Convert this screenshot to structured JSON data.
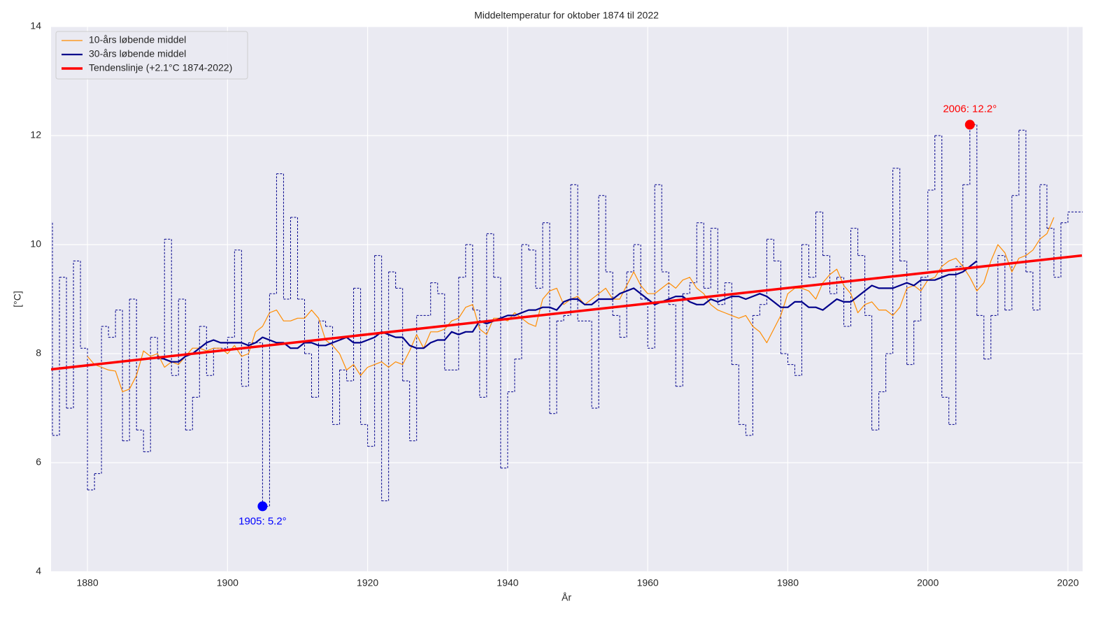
{
  "chart_data": {
    "type": "line",
    "title": "Middeltemperatur for oktober 1874 til 2022",
    "xlabel": "År",
    "ylabel": "[°C]",
    "xlim": [
      1874.8,
      2022.1
    ],
    "ylim": [
      4,
      14
    ],
    "xticks": [
      1880,
      1900,
      1920,
      1940,
      1960,
      1980,
      2000,
      2020
    ],
    "yticks": [
      4,
      6,
      8,
      10,
      12,
      14
    ],
    "grid": true,
    "background": "#eaeaf2",
    "legend": "upper left",
    "drawstyle": "steps-post",
    "color": "#00008b",
    "linestyle": "dashed",
    "x": [
      1874,
      1875,
      1876,
      1877,
      1878,
      1879,
      1880,
      1881,
      1882,
      1883,
      1884,
      1885,
      1886,
      1887,
      1888,
      1889,
      1890,
      1891,
      1892,
      1893,
      1894,
      1895,
      1896,
      1897,
      1898,
      1899,
      1900,
      1901,
      1902,
      1903,
      1904,
      1905,
      1906,
      1907,
      1908,
      1909,
      1910,
      1911,
      1912,
      1913,
      1914,
      1915,
      1916,
      1917,
      1918,
      1919,
      1920,
      1921,
      1922,
      1923,
      1924,
      1925,
      1926,
      1927,
      1928,
      1929,
      1930,
      1931,
      1932,
      1933,
      1934,
      1935,
      1936,
      1937,
      1938,
      1939,
      1940,
      1941,
      1942,
      1943,
      1944,
      1945,
      1946,
      1947,
      1948,
      1949,
      1950,
      1951,
      1952,
      1953,
      1954,
      1955,
      1956,
      1957,
      1958,
      1959,
      1960,
      1961,
      1962,
      1963,
      1964,
      1965,
      1966,
      1967,
      1968,
      1969,
      1970,
      1971,
      1972,
      1973,
      1974,
      1975,
      1976,
      1977,
      1978,
      1979,
      1980,
      1981,
      1982,
      1983,
      1984,
      1985,
      1986,
      1987,
      1988,
      1989,
      1990,
      1991,
      1992,
      1993,
      1994,
      1995,
      1996,
      1997,
      1998,
      1999,
      2000,
      2001,
      2002,
      2003,
      2004,
      2005,
      2006,
      2007,
      2008,
      2009,
      2010,
      2011,
      2012,
      2013,
      2014,
      2015,
      2016,
      2017,
      2018,
      2019,
      2020,
      2021
    ],
    "values": [
      10.4,
      6.5,
      9.4,
      7.0,
      9.7,
      8.1,
      5.5,
      5.8,
      8.5,
      8.3,
      8.8,
      6.4,
      9.0,
      6.6,
      6.2,
      8.3,
      7.9,
      10.1,
      7.6,
      9.0,
      6.6,
      7.2,
      8.5,
      7.6,
      8.1,
      8.1,
      8.3,
      9.9,
      7.4,
      8.2,
      8.2,
      5.2,
      9.1,
      11.3,
      9.0,
      10.5,
      9.0,
      8.0,
      7.2,
      8.6,
      8.5,
      6.7,
      7.7,
      7.5,
      9.2,
      6.7,
      6.3,
      9.8,
      5.3,
      9.5,
      9.2,
      7.5,
      6.4,
      8.7,
      8.7,
      9.3,
      9.1,
      7.7,
      7.7,
      9.4,
      10.0,
      8.8,
      7.2,
      10.2,
      9.4,
      5.9,
      7.3,
      7.9,
      10.0,
      9.9,
      9.2,
      10.4,
      6.9,
      8.6,
      8.7,
      11.1,
      8.6,
      8.6,
      7.0,
      10.9,
      9.5,
      8.7,
      8.3,
      9.5,
      10.0,
      9.0,
      8.1,
      11.1,
      9.5,
      8.9,
      7.4,
      9.1,
      9.3,
      10.4,
      9.2,
      10.3,
      8.9,
      9.3,
      7.8,
      6.7,
      6.5,
      8.7,
      8.9,
      10.1,
      9.7,
      8.0,
      7.8,
      7.6,
      10.0,
      9.4,
      10.6,
      9.8,
      9.1,
      9.4,
      8.5,
      10.3,
      9.8,
      8.7,
      6.6,
      7.3,
      8.0,
      11.4,
      9.7,
      7.8,
      8.6,
      9.4,
      11.0,
      12.0,
      7.2,
      6.7,
      9.6,
      11.1,
      12.2,
      8.7,
      7.9,
      8.7,
      9.8,
      8.8,
      10.9,
      12.1,
      9.5,
      8.8,
      11.1,
      10.3,
      9.4,
      10.4,
      10.6,
      10.6
    ],
    "series": [
      {
        "name": "10-års løbende middel",
        "color": "#ff8c00",
        "linewidth": 1.2,
        "x": [
          1880,
          1881,
          1882,
          1883,
          1884,
          1885,
          1886,
          1887,
          1888,
          1889,
          1890,
          1891,
          1892,
          1893,
          1894,
          1895,
          1896,
          1897,
          1898,
          1899,
          1900,
          1901,
          1902,
          1903,
          1904,
          1905,
          1906,
          1907,
          1908,
          1909,
          1910,
          1911,
          1912,
          1913,
          1914,
          1915,
          1916,
          1917,
          1918,
          1919,
          1920,
          1921,
          1922,
          1923,
          1924,
          1925,
          1926,
          1927,
          1928,
          1929,
          1930,
          1931,
          1932,
          1933,
          1934,
          1935,
          1936,
          1937,
          1938,
          1939,
          1940,
          1941,
          1942,
          1943,
          1944,
          1945,
          1946,
          1947,
          1948,
          1949,
          1950,
          1951,
          1952,
          1953,
          1954,
          1955,
          1956,
          1957,
          1958,
          1959,
          1960,
          1961,
          1962,
          1963,
          1964,
          1965,
          1966,
          1967,
          1968,
          1969,
          1970,
          1971,
          1972,
          1973,
          1974,
          1975,
          1976,
          1977,
          1978,
          1979,
          1980,
          1981,
          1982,
          1983,
          1984,
          1985,
          1986,
          1987,
          1988,
          1989,
          1990,
          1991,
          1992,
          1993,
          1994,
          1995,
          1996,
          1997,
          1998,
          1999,
          2000,
          2001,
          2002,
          2003,
          2004,
          2005,
          2006,
          2007,
          2008,
          2009,
          2010,
          2011,
          2012,
          2013,
          2014,
          2015,
          2016,
          2017,
          2018
        ],
        "values": [
          7.95,
          7.8,
          7.75,
          7.7,
          7.68,
          7.3,
          7.35,
          7.6,
          8.05,
          7.95,
          8.0,
          7.75,
          7.85,
          7.8,
          7.95,
          8.1,
          8.1,
          8.05,
          8.1,
          8.1,
          8.0,
          8.15,
          7.95,
          8.0,
          8.4,
          8.5,
          8.75,
          8.8,
          8.6,
          8.6,
          8.65,
          8.65,
          8.8,
          8.65,
          8.25,
          8.15,
          8.0,
          7.7,
          7.8,
          7.6,
          7.75,
          7.8,
          7.85,
          7.75,
          7.85,
          7.8,
          8.05,
          8.35,
          8.1,
          8.4,
          8.4,
          8.45,
          8.6,
          8.65,
          8.85,
          8.9,
          8.45,
          8.35,
          8.65,
          8.65,
          8.6,
          8.75,
          8.65,
          8.55,
          8.5,
          9.0,
          9.15,
          9.2,
          8.9,
          9.0,
          9.05,
          8.9,
          9.0,
          9.1,
          9.2,
          9.0,
          9.0,
          9.25,
          9.5,
          9.25,
          9.1,
          9.1,
          9.2,
          9.3,
          9.2,
          9.35,
          9.4,
          9.2,
          9.1,
          8.9,
          8.8,
          8.75,
          8.7,
          8.65,
          8.7,
          8.5,
          8.4,
          8.2,
          8.45,
          8.7,
          9.1,
          9.2,
          9.2,
          9.15,
          9.0,
          9.3,
          9.45,
          9.55,
          9.25,
          9.1,
          8.75,
          8.9,
          8.95,
          8.8,
          8.8,
          8.7,
          8.85,
          9.2,
          9.25,
          9.15,
          9.35,
          9.4,
          9.6,
          9.7,
          9.75,
          9.6,
          9.4,
          9.15,
          9.3,
          9.7,
          10.0,
          9.85,
          9.5,
          9.75,
          9.8,
          9.9,
          10.1,
          10.2,
          10.5
        ]
      },
      {
        "name": "30-års løbende middel",
        "color": "#00008b",
        "linewidth": 2.2,
        "x": [
          1890,
          1891,
          1892,
          1893,
          1894,
          1895,
          1896,
          1897,
          1898,
          1899,
          1900,
          1901,
          1902,
          1903,
          1904,
          1905,
          1906,
          1907,
          1908,
          1909,
          1910,
          1911,
          1912,
          1913,
          1914,
          1915,
          1916,
          1917,
          1918,
          1919,
          1920,
          1921,
          1922,
          1923,
          1924,
          1925,
          1926,
          1927,
          1928,
          1929,
          1930,
          1931,
          1932,
          1933,
          1934,
          1935,
          1936,
          1937,
          1938,
          1939,
          1940,
          1941,
          1942,
          1943,
          1944,
          1945,
          1946,
          1947,
          1948,
          1949,
          1950,
          1951,
          1952,
          1953,
          1954,
          1955,
          1956,
          1957,
          1958,
          1959,
          1960,
          1961,
          1962,
          1963,
          1964,
          1965,
          1966,
          1967,
          1968,
          1969,
          1970,
          1971,
          1972,
          1973,
          1974,
          1975,
          1976,
          1977,
          1978,
          1979,
          1980,
          1981,
          1982,
          1983,
          1984,
          1985,
          1986,
          1987,
          1988,
          1989,
          1990,
          1991,
          1992,
          1993,
          1994,
          1995,
          1996,
          1997,
          1998,
          1999,
          2000,
          2001,
          2002,
          2003,
          2004,
          2005,
          2006,
          2007
        ],
        "values": [
          7.95,
          7.9,
          7.85,
          7.85,
          7.95,
          8.0,
          8.1,
          8.2,
          8.25,
          8.2,
          8.2,
          8.2,
          8.2,
          8.15,
          8.2,
          8.3,
          8.25,
          8.2,
          8.2,
          8.1,
          8.1,
          8.2,
          8.2,
          8.15,
          8.15,
          8.2,
          8.25,
          8.3,
          8.2,
          8.2,
          8.25,
          8.3,
          8.4,
          8.35,
          8.3,
          8.3,
          8.15,
          8.1,
          8.1,
          8.2,
          8.25,
          8.25,
          8.4,
          8.35,
          8.4,
          8.4,
          8.6,
          8.55,
          8.6,
          8.65,
          8.7,
          8.7,
          8.75,
          8.8,
          8.8,
          8.85,
          8.85,
          8.8,
          8.95,
          9.0,
          9.0,
          8.9,
          8.9,
          9.0,
          9.0,
          9.0,
          9.1,
          9.15,
          9.2,
          9.1,
          9.0,
          8.9,
          8.95,
          9.0,
          9.05,
          9.05,
          8.95,
          8.9,
          8.9,
          9.0,
          8.95,
          9.0,
          9.05,
          9.05,
          9.0,
          9.05,
          9.1,
          9.05,
          8.95,
          8.85,
          8.85,
          8.95,
          8.95,
          8.85,
          8.85,
          8.8,
          8.9,
          9.0,
          8.95,
          8.95,
          9.05,
          9.15,
          9.25,
          9.2,
          9.2,
          9.2,
          9.25,
          9.3,
          9.25,
          9.35,
          9.35,
          9.35,
          9.4,
          9.45,
          9.45,
          9.5,
          9.6,
          9.7
        ]
      },
      {
        "name": "Tendenslinje (+2.1°C 1874-2022)",
        "color": "#ff0000",
        "linewidth": 3.5,
        "x": [
          1874,
          2022
        ],
        "values": [
          7.7,
          9.8
        ]
      }
    ],
    "annotations": [
      {
        "text": "1905: 5.2°",
        "x": 1905,
        "y": 5.2,
        "color": "#0000ff",
        "position": "below"
      },
      {
        "text": "2006: 12.2°",
        "x": 2006,
        "y": 12.2,
        "color": "#ff0000",
        "position": "above"
      }
    ]
  }
}
